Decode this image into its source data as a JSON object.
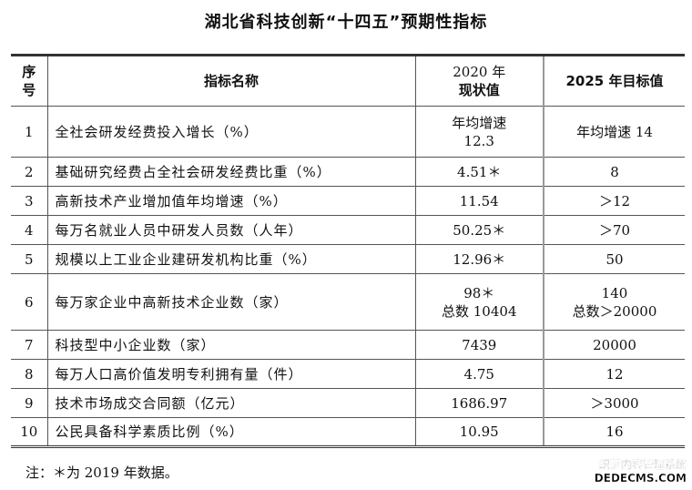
{
  "title": "湖北省科技创新“十四五”预期性指标",
  "headers": {
    "seq": [
      "序",
      "号"
    ],
    "name": "指标名称",
    "y2020": [
      "2020 年",
      "现状值"
    ],
    "y2025": "2025 年目标值"
  },
  "rows": [
    {
      "seq": "1",
      "name": "全社会研发经费投入增长（%）",
      "v2020": [
        "年均增速",
        "12.3"
      ],
      "v2025": [
        "年均增速 14"
      ]
    },
    {
      "seq": "2",
      "name": "基础研究经费占全社会研发经费比重（%）",
      "v2020": [
        "4.51＊"
      ],
      "v2025": [
        "8"
      ]
    },
    {
      "seq": "3",
      "name": "高新技术产业增加值年均增速（%）",
      "v2020": [
        "11.54"
      ],
      "v2025": [
        "＞12"
      ]
    },
    {
      "seq": "4",
      "name": "每万名就业人员中研发人员数（人年）",
      "v2020": [
        "50.25＊"
      ],
      "v2025": [
        "＞70"
      ]
    },
    {
      "seq": "5",
      "name": "规模以上工业企业建研发机构比重（%）",
      "v2020": [
        "12.96＊"
      ],
      "v2025": [
        "50"
      ]
    },
    {
      "seq": "6",
      "name": "每万家企业中高新技术企业数（家）",
      "v2020": [
        "98＊",
        "总数 10404"
      ],
      "v2025": [
        "140",
        "总数＞20000"
      ]
    },
    {
      "seq": "7",
      "name": "科技型中小企业数（家）",
      "v2020": [
        "7439"
      ],
      "v2025": [
        "20000"
      ]
    },
    {
      "seq": "8",
      "name": "每万人口高价值发明专利拥有量（件）",
      "v2020": [
        "4.75"
      ],
      "v2025": [
        "12"
      ]
    },
    {
      "seq": "9",
      "name": "技术市场成交合同额（亿元）",
      "v2020": [
        "1686.97"
      ],
      "v2025": [
        "＞3000"
      ]
    },
    {
      "seq": "10",
      "name": "公民具备科学素质比例（%）",
      "v2020": [
        "10.95"
      ],
      "v2025": [
        "16"
      ]
    }
  ],
  "note": "注：＊为 2019 年数据。",
  "watermark": [
    "织梦内容管理系统",
    "DEDECMS.COM"
  ]
}
